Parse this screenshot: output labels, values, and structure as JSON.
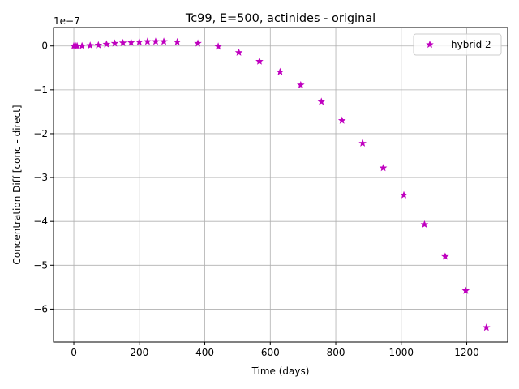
{
  "chart_data": {
    "type": "scatter",
    "title": "Tc99, E=500, actinides - original",
    "xlabel": "Time (days)",
    "ylabel": "Concentration Diff [conc - direct]",
    "y_offset_label": "1e−7",
    "y_scale": 1e-07,
    "xlim": [
      -62,
      1325
    ],
    "ylim": [
      -6.75e-07,
      4.2e-08
    ],
    "x_ticks": [
      0,
      200,
      400,
      600,
      800,
      1000,
      1200
    ],
    "x_tick_labels": [
      "0",
      "200",
      "400",
      "600",
      "800",
      "1000",
      "1200"
    ],
    "y_ticks": [
      0,
      -1e-07,
      -2e-07,
      -3e-07,
      -4e-07,
      -5e-07,
      -6e-07
    ],
    "y_tick_labels": [
      "0",
      "−1",
      "−2",
      "−3",
      "−4",
      "−5",
      "−6"
    ],
    "grid": true,
    "legend_position": "upper right",
    "series": [
      {
        "name": "hybrid 2",
        "color": "#bf00bf",
        "marker": "star",
        "x": [
          0,
          5,
          10,
          25,
          50,
          75,
          100,
          125,
          150,
          175,
          200,
          225,
          250,
          275,
          316,
          379,
          441,
          504,
          567,
          630,
          693,
          756,
          819,
          882,
          945,
          1008,
          1071,
          1134,
          1197,
          1260
        ],
        "y": [
          0.0,
          0.0,
          0.0,
          0.0,
          1e-09,
          2e-09,
          4e-09,
          6e-09,
          7e-09,
          8e-09,
          9e-09,
          1e-08,
          1e-08,
          1e-08,
          9e-09,
          6e-09,
          -1e-09,
          -1.5e-08,
          -3.5e-08,
          -5.9e-08,
          -8.9e-08,
          -1.27e-07,
          -1.7e-07,
          -2.22e-07,
          -2.78e-07,
          -3.4e-07,
          -4.07e-07,
          -4.8e-07,
          -5.58e-07,
          -6.42e-07
        ]
      }
    ]
  }
}
